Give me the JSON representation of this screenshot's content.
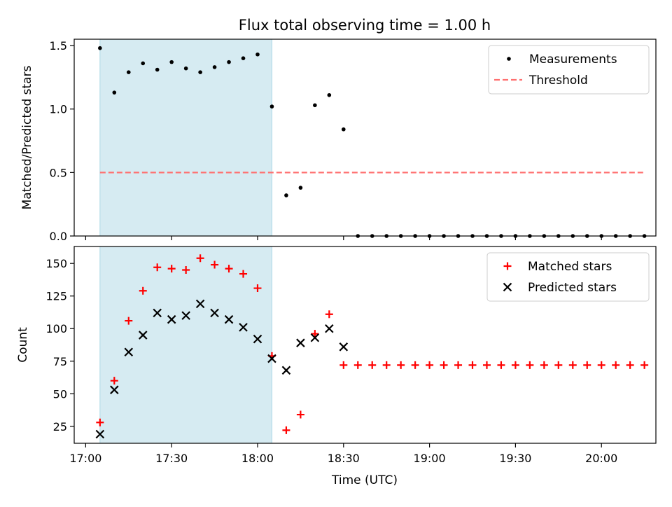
{
  "chart_data": {
    "title": "Flux total observing time = 1.00 h",
    "xlabel": "Time (UTC)",
    "x_unit": "minutes since 17:00 UTC",
    "x_range": [
      -4,
      199
    ],
    "x_ticks": [
      {
        "value": 0,
        "label": "17:00"
      },
      {
        "value": 30,
        "label": "17:30"
      },
      {
        "value": 60,
        "label": "18:00"
      },
      {
        "value": 90,
        "label": "18:30"
      },
      {
        "value": 120,
        "label": "19:00"
      },
      {
        "value": 150,
        "label": "19:30"
      },
      {
        "value": 180,
        "label": "20:00"
      }
    ],
    "shaded_interval": {
      "from": 5,
      "to": 65,
      "color": "#add8e6"
    },
    "x": [
      5,
      10,
      15,
      20,
      25,
      30,
      35,
      40,
      45,
      50,
      55,
      60,
      65,
      70,
      75,
      80,
      85,
      90,
      95,
      100,
      105,
      110,
      115,
      120,
      125,
      130,
      135,
      140,
      145,
      150,
      155,
      160,
      165,
      170,
      175,
      180,
      185,
      190,
      195
    ],
    "panels": [
      {
        "type": "scatter",
        "ylabel": "Matched/Predicted stars",
        "ylim": [
          0,
          1.55
        ],
        "yticks": [
          0,
          0.5,
          1.0,
          1.5
        ],
        "ytick_labels": [
          "0.0",
          "0.5",
          "1.0",
          "1.5"
        ],
        "legend_position": "top-right",
        "series": [
          {
            "name": "Measurements",
            "marker": "dot",
            "color": "#000000",
            "values": [
              1.48,
              1.13,
              1.29,
              1.36,
              1.31,
              1.37,
              1.32,
              1.29,
              1.33,
              1.37,
              1.4,
              1.43,
              1.02,
              0.32,
              0.38,
              1.03,
              1.11,
              0.84,
              0,
              0,
              0,
              0,
              0,
              0,
              0,
              0,
              0,
              0,
              0,
              0,
              0,
              0,
              0,
              0,
              0,
              0,
              0,
              0,
              0
            ]
          }
        ],
        "threshold": {
          "name": "Threshold",
          "value": 0.5,
          "from": 5,
          "to": 195,
          "color": "#ff7070"
        }
      },
      {
        "type": "scatter",
        "ylabel": "Count",
        "ylim": [
          12,
          163
        ],
        "yticks": [
          25,
          50,
          75,
          100,
          125,
          150
        ],
        "ytick_labels": [
          "25",
          "50",
          "75",
          "100",
          "125",
          "150"
        ],
        "legend_position": "top-right",
        "series": [
          {
            "name": "Matched stars",
            "marker": "plus",
            "color": "#ff0000",
            "values": [
              28,
              60,
              106,
              129,
              147,
              146,
              145,
              154,
              149,
              146,
              142,
              131,
              79,
              22,
              34,
              96,
              111,
              72,
              72,
              72,
              72,
              72,
              72,
              72,
              72,
              72,
              72,
              72,
              72,
              72,
              72,
              72,
              72,
              72,
              72,
              72,
              72,
              72,
              72
            ]
          },
          {
            "name": "Predicted stars",
            "marker": "x",
            "color": "#000000",
            "values": [
              19,
              53,
              82,
              95,
              112,
              107,
              110,
              119,
              112,
              107,
              101,
              92,
              77,
              68,
              89,
              93,
              100,
              86,
              null,
              null,
              null,
              null,
              null,
              null,
              null,
              null,
              null,
              null,
              null,
              null,
              null,
              null,
              null,
              null,
              null,
              null,
              null,
              null,
              null
            ]
          }
        ]
      }
    ]
  }
}
